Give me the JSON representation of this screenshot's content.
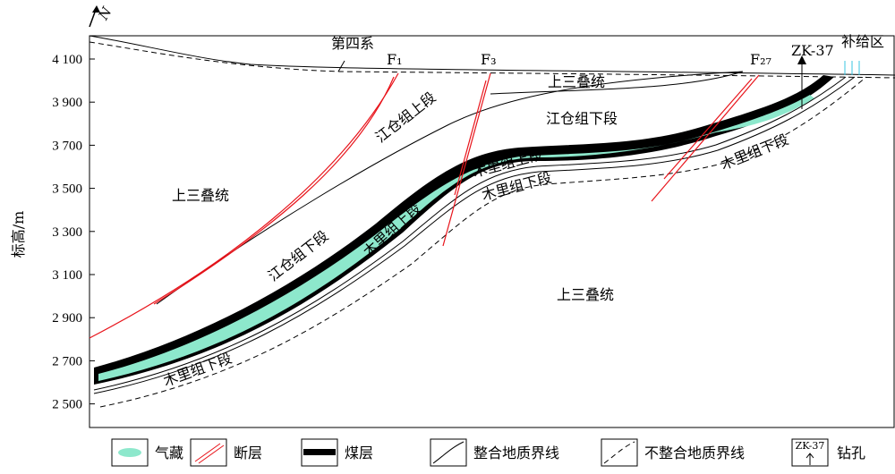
{
  "axis": {
    "title": "标高/m",
    "ticks": [
      "4 100",
      "3 900",
      "3 700",
      "3 500",
      "3 300",
      "3 100",
      "2 900",
      "2 700",
      "2 500"
    ]
  },
  "north": "N",
  "section_labels": {
    "quaternary": "第四系",
    "faults": [
      "F₁",
      "F₃",
      "F₂₇"
    ],
    "borehole": "ZK-37",
    "recharge": "补给区",
    "upper_triassic": [
      "上三叠统",
      "上三叠统",
      "上三叠统"
    ],
    "jiangcang_upper": "江仓组上段",
    "jiangcang_lower": [
      "江仓组下段",
      "江仓组下段"
    ],
    "muli_upper": [
      "木里组上段",
      "木里组上段"
    ],
    "muli_lower": [
      "木里组下段",
      "木里组下段",
      "木里组下段"
    ]
  },
  "legend": [
    "气藏",
    "断层",
    "煤层",
    "整合地质界线",
    "不整合地质界线",
    "钻孔"
  ],
  "legend_icon": "ZK-37"
}
